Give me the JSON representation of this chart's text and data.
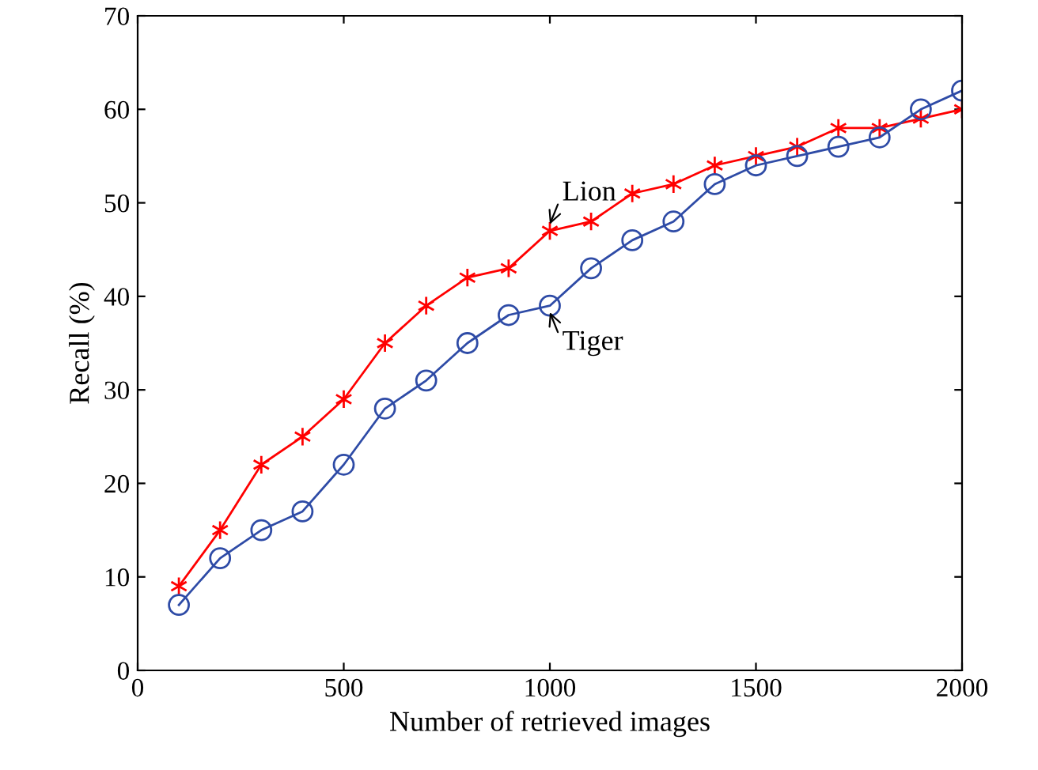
{
  "chart_data": {
    "type": "line",
    "xlabel": "Number of retrieved images",
    "ylabel": "Recall (%)",
    "x": [
      100,
      200,
      300,
      400,
      500,
      600,
      700,
      800,
      900,
      1000,
      1100,
      1200,
      1300,
      1400,
      1500,
      1600,
      1700,
      1800,
      1900,
      2000
    ],
    "series": [
      {
        "color": "#ff0000",
        "marker": "cross",
        "values": [
          9,
          15,
          22,
          25,
          29,
          35,
          39,
          42,
          43,
          47,
          48,
          51,
          52,
          54,
          55,
          56,
          58,
          58,
          59,
          60
        ]
      },
      {
        "color": "#2e4ba6",
        "marker": "circle",
        "values": [
          7,
          12,
          15,
          17,
          22,
          28,
          31,
          35,
          38,
          39,
          43,
          46,
          48,
          52,
          54,
          55,
          56,
          57,
          60,
          62
        ]
      }
    ],
    "annotations": [
      {
        "text": "Lion",
        "x": 1000,
        "y": 47
      },
      {
        "text": "Tiger",
        "x": 1000,
        "y": 39
      }
    ],
    "xlim": [
      0,
      2000
    ],
    "xticks": [
      0,
      500,
      1000,
      1500,
      2000
    ],
    "ylim": [
      0,
      70
    ],
    "yticks": [
      0,
      10,
      20,
      30,
      40,
      50,
      60,
      70
    ],
    "grid": false,
    "legend": false,
    "line_style": "solid"
  }
}
